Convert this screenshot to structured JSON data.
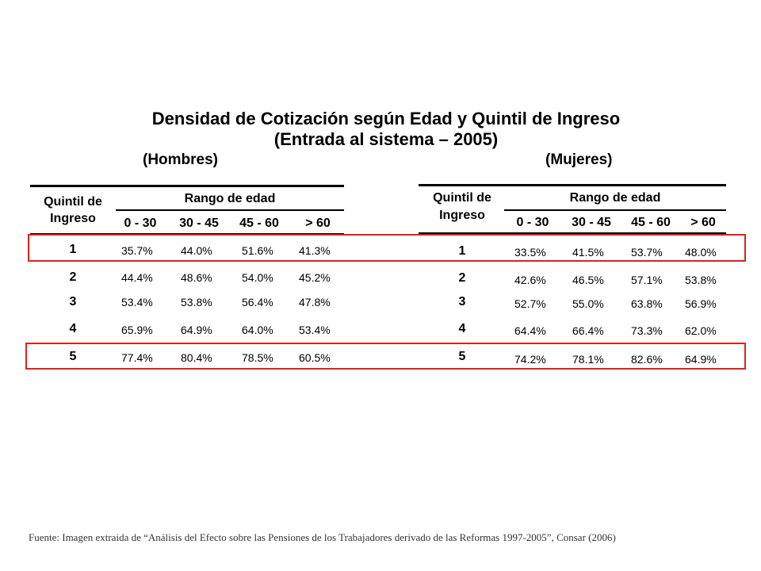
{
  "title": {
    "line1": "Densidad de Cotización según Edad y Quintil de Ingreso",
    "line2": "(Entrada al sistema – 2005)"
  },
  "tables": [
    {
      "group_label": "(Hombres)",
      "quintil_header_line1": "Quintil de",
      "quintil_header_line2": "Ingreso",
      "range_header": "Rango de edad",
      "columns": [
        "0 - 30",
        "30 - 45",
        "45 - 60",
        "> 60"
      ],
      "rows": [
        {
          "label": "1",
          "values": [
            "35.7%",
            "44.0%",
            "51.6%",
            "41.3%"
          ]
        },
        {
          "label": "2",
          "values": [
            "44.4%",
            "48.6%",
            "54.0%",
            "45.2%"
          ]
        },
        {
          "label": "3",
          "values": [
            "53.4%",
            "53.8%",
            "56.4%",
            "47.8%"
          ]
        },
        {
          "label": "4",
          "values": [
            "65.9%",
            "64.9%",
            "64.0%",
            "53.4%"
          ]
        },
        {
          "label": "5",
          "values": [
            "77.4%",
            "80.4%",
            "78.5%",
            "60.5%"
          ]
        }
      ]
    },
    {
      "group_label": "(Mujeres)",
      "quintil_header_line1": "Quintil de",
      "quintil_header_line2": "Ingreso",
      "range_header": "Rango de edad",
      "columns": [
        "0 - 30",
        "30 - 45",
        "45 - 60",
        "> 60"
      ],
      "rows": [
        {
          "label": "1",
          "values": [
            "33.5%",
            "41.5%",
            "53.7%",
            "48.0%"
          ]
        },
        {
          "label": "2",
          "values": [
            "42.6%",
            "46.5%",
            "57.1%",
            "53.8%"
          ]
        },
        {
          "label": "3",
          "values": [
            "52.7%",
            "55.0%",
            "63.8%",
            "56.9%"
          ]
        },
        {
          "label": "4",
          "values": [
            "64.4%",
            "66.4%",
            "73.3%",
            "62.0%"
          ]
        },
        {
          "label": "5",
          "values": [
            "74.2%",
            "78.1%",
            "82.6%",
            "64.9%"
          ]
        }
      ]
    }
  ],
  "highlight_color": "#e0201e",
  "footnote": "Fuente: Imagen extraida de “Análisis del Efecto sobre las Pensiones de los Trabajadores derivado de las Reformas 1997-2005”, Consar (2006)"
}
